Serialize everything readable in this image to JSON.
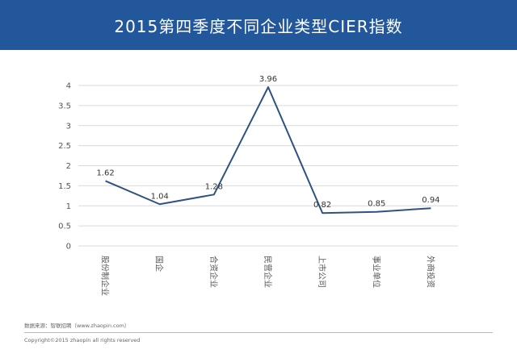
{
  "header": {
    "title": "2015第四季度不同企业类型CIER指数"
  },
  "chart_data": {
    "type": "line",
    "categories": [
      "股份制企业",
      "国企",
      "合资企业",
      "民营企业",
      "上市公司",
      "事业单位",
      "外商投资"
    ],
    "values": [
      1.62,
      1.04,
      1.28,
      3.96,
      0.82,
      0.85,
      0.94
    ],
    "data_labels": [
      "1.62",
      "1.04",
      "1.28",
      "3.96",
      "0.82",
      "0.85",
      "0.94"
    ],
    "y_ticks": [
      "0",
      "0.5",
      "1",
      "1.5",
      "2",
      "2.5",
      "3",
      "3.5",
      "4"
    ],
    "ylim": [
      0,
      4
    ],
    "grid": true,
    "line_color": "#2e5286",
    "grid_color": "#d9d9d9"
  },
  "footer": {
    "source": "数据来源：智联招聘（www.zhaopin.com）",
    "copyright": "Copyright©2015 zhaopin all rights reserved"
  }
}
